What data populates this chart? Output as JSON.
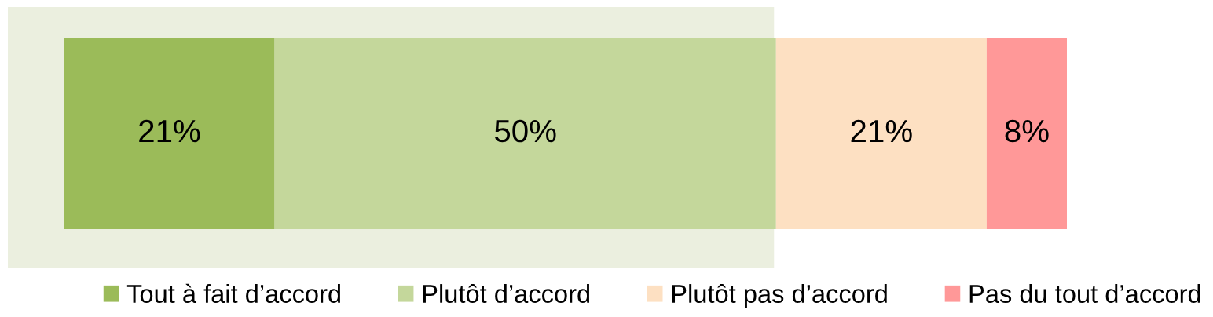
{
  "chart_data": {
    "type": "bar",
    "orientation": "horizontal",
    "stacked": true,
    "categories": [
      null
    ],
    "series": [
      {
        "name": "Tout à fait d’accord",
        "color": "#9bbb59",
        "values": [
          21
        ],
        "value_labels": [
          "21%"
        ]
      },
      {
        "name": "Plutôt d’accord",
        "color": "#c4d79b",
        "values": [
          50
        ],
        "value_labels": [
          "50%"
        ]
      },
      {
        "name": "Plutôt pas d’accord",
        "color": "#fde0c2",
        "values": [
          21
        ],
        "value_labels": [
          "21%"
        ]
      },
      {
        "name": "Pas du tout d’accord",
        "color": "#ff9898",
        "values": [
          8
        ],
        "value_labels": [
          "8%"
        ]
      }
    ],
    "tick_labels": false,
    "grid": false,
    "bands": [
      {
        "axis": "x",
        "from": -5.6,
        "to": 70.8,
        "color": "#ebefdf"
      }
    ],
    "legend": "bottom"
  }
}
